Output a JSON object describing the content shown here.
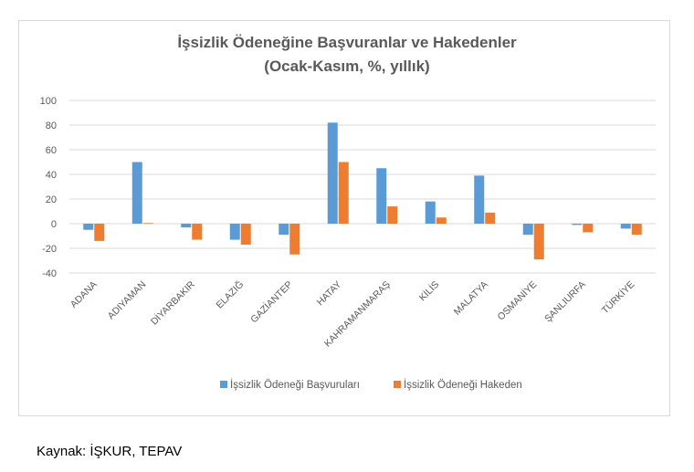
{
  "chart_data": {
    "type": "bar",
    "title": "İşsizlik Ödeneğine Başvuranlar  ve Hakedenler",
    "subtitle": "(Ocak-Kasım, %, yıllık)",
    "categories": [
      "ADANA",
      "ADIYAMAN",
      "DİYARBAKIR",
      "ELAZIĞ",
      "GAZİANTEP",
      "HATAY",
      "KAHRAMANMARAŞ",
      "KİLİS",
      "MALATYA",
      "OSMANİYE",
      "ŞANLIURFA",
      "TÜRKİYE"
    ],
    "series": [
      {
        "name": "İşsizlik Ödeneği Başvuruları",
        "color": "#5b9bd5",
        "values": [
          -5,
          50,
          -3,
          -13,
          -9,
          82,
          45,
          18,
          39,
          -9,
          -1,
          -4
        ]
      },
      {
        "name": "İşsizlik Ödeneği Hakeden",
        "color": "#ed7d31",
        "values": [
          -14,
          0.5,
          -13,
          -17,
          -25,
          50,
          14,
          5,
          9,
          -29,
          -7,
          -9
        ]
      }
    ],
    "ylim": [
      -40,
      100
    ],
    "yticks": [
      "100",
      "80",
      "60",
      "40",
      "20",
      "0",
      "-20",
      "-40"
    ],
    "grid": true,
    "legend": "bottom",
    "xlabel": "",
    "ylabel": ""
  },
  "source": "Kaynak: İŞKUR, TEPAV"
}
